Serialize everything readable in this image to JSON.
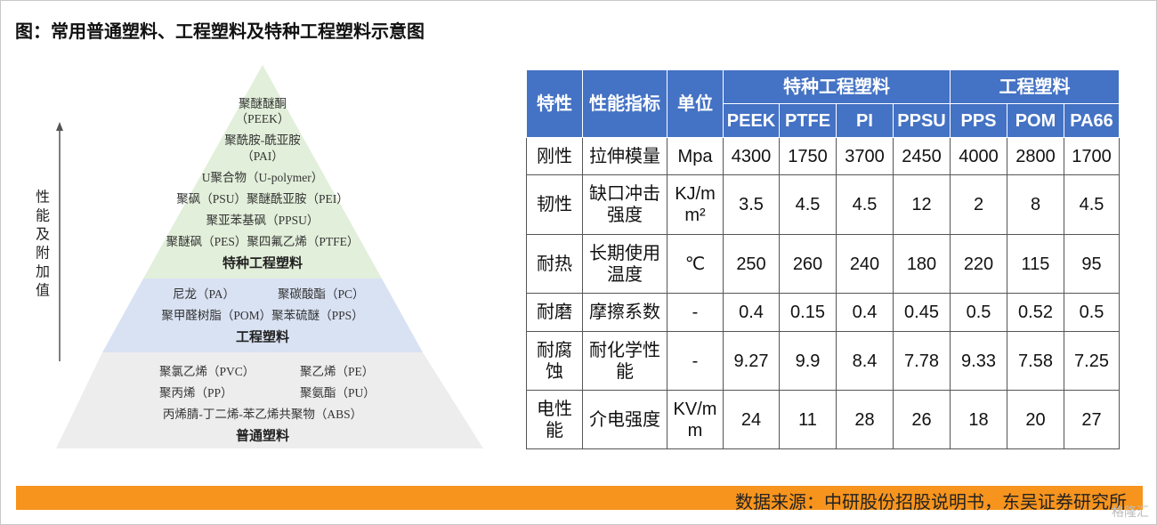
{
  "title": "图：常用普通塑料、工程塑料及特种工程塑料示意图",
  "pyramid": {
    "axis_label": "性能及附加值",
    "levels": [
      {
        "label": "特种工程塑料",
        "lines": [
          [
            "聚醚醚酮"
          ],
          [
            "（PEEK）"
          ],
          [
            "聚酰胺-酰亚胺"
          ],
          [
            "（PAI）"
          ],
          [
            "U聚合物（U-polymer）"
          ],
          [
            "聚砜（PSU）聚醚酰亚胺（PEI）"
          ],
          [
            "聚亚苯基砜（PPSU）"
          ],
          [
            "聚醚砜（PES）聚四氟乙烯（PTFE）"
          ]
        ]
      },
      {
        "label": "工程塑料",
        "lines": [
          [
            "尼龙（PA）",
            "聚碳酸酯（PC）"
          ],
          [
            "聚甲醛树脂（POM）聚苯硫醚（PPS）"
          ]
        ]
      },
      {
        "label": "普通塑料",
        "lines": [
          [
            "聚氯乙烯（PVC）",
            "聚乙烯（PE）"
          ],
          [
            "聚丙烯（PP）",
            "聚氨酯（PU）"
          ],
          [
            "丙烯腈-丁二烯-苯乙烯共聚物（ABS）"
          ]
        ]
      }
    ]
  },
  "table": {
    "header": {
      "feature": "特性",
      "metric": "性能指标",
      "unit": "单位",
      "groups": [
        {
          "name": "特种工程塑料",
          "columns": [
            "PEEK",
            "PTFE",
            "PI",
            "PPSU"
          ]
        },
        {
          "name": "工程塑料",
          "columns": [
            "PPS",
            "POM",
            "PA66"
          ]
        }
      ]
    },
    "rows": [
      [
        "刚性",
        "拉伸模量",
        "Mpa",
        "4300",
        "1750",
        "3700",
        "2450",
        "4000",
        "2800",
        "1700"
      ],
      [
        "韧性",
        "缺口冲击强度",
        "KJ/mm²",
        "3.5",
        "4.5",
        "4.5",
        "12",
        "2",
        "8",
        "4.5"
      ],
      [
        "耐热",
        "长期使用温度",
        "℃",
        "250",
        "260",
        "240",
        "180",
        "220",
        "115",
        "95"
      ],
      [
        "耐磨",
        "摩擦系数",
        "-",
        "0.4",
        "0.15",
        "0.4",
        "0.45",
        "0.5",
        "0.52",
        "0.5"
      ],
      [
        "耐腐蚀",
        "耐化学性能",
        "-",
        "9.27",
        "9.9",
        "8.4",
        "7.78",
        "9.33",
        "7.58",
        "7.25"
      ],
      [
        "电性能",
        "介电强度",
        "KV/mm",
        "24",
        "11",
        "28",
        "26",
        "18",
        "20",
        "27"
      ]
    ]
  },
  "footer": {
    "source": "数据来源：中研股份招股说明书，东吴证券研究所",
    "watermark": "格隆汇"
  }
}
